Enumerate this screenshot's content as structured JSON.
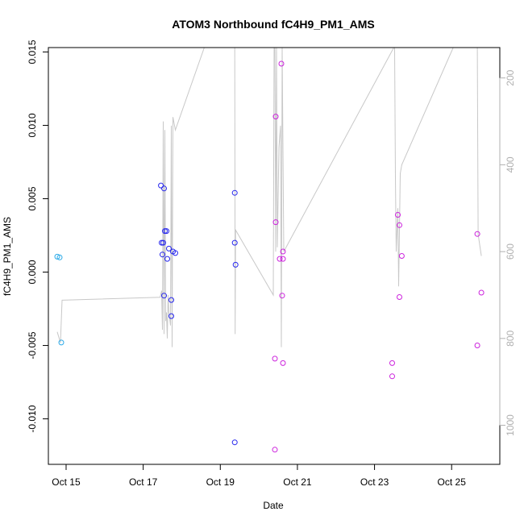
{
  "chart_data": {
    "type": "scatter",
    "title": "ATOM3 Northbound fC4H9_PM1_AMS",
    "xlabel": "Date",
    "ylabel": "fC4H9_PM1_AMS",
    "x_type": "date",
    "xlim": [
      "2016-10-14T12:58",
      "2016-10-26T06:00"
    ],
    "ylim": [
      -0.0131,
      0.0153
    ],
    "x_ticks": [
      {
        "x": "2016-10-15T00:00",
        "label": "Oct 15"
      },
      {
        "x": "2016-10-17T00:00",
        "label": "Oct 17"
      },
      {
        "x": "2016-10-19T00:00",
        "label": "Oct 19"
      },
      {
        "x": "2016-10-21T00:00",
        "label": "Oct 21"
      },
      {
        "x": "2016-10-23T00:00",
        "label": "Oct 23"
      },
      {
        "x": "2016-10-25T00:00",
        "label": "Oct 25"
      }
    ],
    "y_ticks": [
      {
        "y": -0.01,
        "label": "-0.010"
      },
      {
        "y": -0.005,
        "label": "-0.005"
      },
      {
        "y": 0.0,
        "label": "0.000"
      },
      {
        "y": 0.005,
        "label": "0.005"
      },
      {
        "y": 0.01,
        "label": "0.010"
      },
      {
        "y": 0.015,
        "label": "0.015"
      }
    ],
    "y2_reverse": true,
    "y2lim": [
      130,
      1090
    ],
    "y2_ticks": [
      {
        "y": 200,
        "label": "200"
      },
      {
        "y": 400,
        "label": "400"
      },
      {
        "y": 600,
        "label": "600"
      },
      {
        "y": 800,
        "label": "800"
      },
      {
        "y": 1000,
        "label": "1000"
      }
    ],
    "colors": {
      "cyan": "#29a9e8",
      "blue": "#2626ee",
      "magenta": "#cc22dd",
      "line": "#c8c8c8",
      "axis": "#000000",
      "axis2": "#b0b0b0"
    },
    "series": [
      {
        "color_key": "cyan",
        "points": [
          {
            "x": "2016-10-14T18:30",
            "y": 0.00105
          },
          {
            "x": "2016-10-14T20:00",
            "y": 0.001
          },
          {
            "x": "2016-10-14T21:00",
            "y": -0.0048
          }
        ]
      },
      {
        "color_key": "blue",
        "points": [
          {
            "x": "2016-10-17T11:00",
            "y": 0.0059
          },
          {
            "x": "2016-10-17T13:00",
            "y": 0.0057
          },
          {
            "x": "2016-10-17T11:30",
            "y": 0.002
          },
          {
            "x": "2016-10-17T12:30",
            "y": 0.002
          },
          {
            "x": "2016-10-17T13:30",
            "y": 0.0028
          },
          {
            "x": "2016-10-17T14:30",
            "y": 0.0028
          },
          {
            "x": "2016-10-17T16:00",
            "y": 0.0016
          },
          {
            "x": "2016-10-17T12:00",
            "y": 0.0012
          },
          {
            "x": "2016-10-17T15:00",
            "y": 0.0009
          },
          {
            "x": "2016-10-17T18:30",
            "y": 0.0014
          },
          {
            "x": "2016-10-17T20:00",
            "y": 0.0013
          },
          {
            "x": "2016-10-17T13:00",
            "y": -0.0016
          },
          {
            "x": "2016-10-17T17:30",
            "y": -0.0019
          },
          {
            "x": "2016-10-17T17:30",
            "y": -0.003
          },
          {
            "x": "2016-10-19T09:00",
            "y": 0.0054
          },
          {
            "x": "2016-10-19T09:00",
            "y": 0.002
          },
          {
            "x": "2016-10-19T09:30",
            "y": 0.0005
          },
          {
            "x": "2016-10-19T09:00",
            "y": -0.0116
          }
        ]
      },
      {
        "color_key": "magenta",
        "points": [
          {
            "x": "2016-10-20T14:00",
            "y": 0.0142
          },
          {
            "x": "2016-10-20T10:30",
            "y": 0.0106
          },
          {
            "x": "2016-10-20T10:30",
            "y": 0.0034
          },
          {
            "x": "2016-10-20T15:00",
            "y": 0.0014
          },
          {
            "x": "2016-10-20T13:00",
            "y": 0.0009
          },
          {
            "x": "2016-10-20T15:00",
            "y": 0.0009
          },
          {
            "x": "2016-10-20T14:30",
            "y": -0.0016
          },
          {
            "x": "2016-10-20T10:00",
            "y": -0.0059
          },
          {
            "x": "2016-10-20T15:00",
            "y": -0.0062
          },
          {
            "x": "2016-10-20T10:00",
            "y": -0.0121
          },
          {
            "x": "2016-10-23T14:30",
            "y": 0.0039
          },
          {
            "x": "2016-10-23T15:30",
            "y": 0.0032
          },
          {
            "x": "2016-10-23T17:00",
            "y": 0.0011
          },
          {
            "x": "2016-10-23T15:30",
            "y": -0.0017
          },
          {
            "x": "2016-10-23T11:00",
            "y": -0.0062
          },
          {
            "x": "2016-10-23T11:00",
            "y": -0.0071
          },
          {
            "x": "2016-10-25T16:00",
            "y": 0.0026
          },
          {
            "x": "2016-10-25T18:30",
            "y": -0.0014
          },
          {
            "x": "2016-10-25T16:00",
            "y": -0.005
          }
        ]
      }
    ],
    "altitude_line": [
      [
        "2016-10-14T18:30",
        785
      ],
      [
        "2016-10-14T20:30",
        810
      ],
      [
        "2016-10-14T21:30",
        712
      ],
      [
        "2016-10-17T10:30",
        705
      ],
      [
        "2016-10-17T11:30",
        690
      ],
      [
        "2016-10-17T12:00",
        780
      ],
      [
        "2016-10-17T12:30",
        300
      ],
      [
        "2016-10-17T13:00",
        790
      ],
      [
        "2016-10-17T13:30",
        320
      ],
      [
        "2016-10-17T14:00",
        760
      ],
      [
        "2016-10-17T14:30",
        740
      ],
      [
        "2016-10-17T15:00",
        800
      ],
      [
        "2016-10-17T15:30",
        700
      ],
      [
        "2016-10-17T16:00",
        740
      ],
      [
        "2016-10-17T17:00",
        770
      ],
      [
        "2016-10-17T17:30",
        310
      ],
      [
        "2016-10-17T18:00",
        820
      ],
      [
        "2016-10-17T18:30",
        290
      ],
      [
        "2016-10-17T20:00",
        320
      ],
      [
        "2016-10-18T14:00",
        130
      ],
      [
        "2016-10-19T09:00",
        130
      ],
      [
        "2016-10-19T09:15",
        790
      ],
      [
        "2016-10-19T09:30",
        550
      ],
      [
        "2016-10-20T09:00",
        700
      ],
      [
        "2016-10-20T09:30",
        130
      ],
      [
        "2016-10-20T10:00",
        130
      ],
      [
        "2016-10-20T10:30",
        600
      ],
      [
        "2016-10-20T11:00",
        130
      ],
      [
        "2016-10-20T11:30",
        590
      ],
      [
        "2016-10-20T12:30",
        360
      ],
      [
        "2016-10-20T13:30",
        310
      ],
      [
        "2016-10-20T14:00",
        820
      ],
      [
        "2016-10-20T14:30",
        130
      ],
      [
        "2016-10-20T15:30",
        600
      ],
      [
        "2016-10-23T12:00",
        130
      ],
      [
        "2016-10-23T12:30",
        130
      ],
      [
        "2016-10-23T13:00",
        430
      ],
      [
        "2016-10-23T13:30",
        600
      ],
      [
        "2016-10-23T14:30",
        500
      ],
      [
        "2016-10-23T15:00",
        680
      ],
      [
        "2016-10-23T16:00",
        420
      ],
      [
        "2016-10-23T17:00",
        400
      ],
      [
        "2016-10-25T01:00",
        130
      ],
      [
        "2016-10-25T16:00",
        130
      ],
      [
        "2016-10-25T16:30",
        560
      ],
      [
        "2016-10-25T18:30",
        610
      ]
    ]
  }
}
